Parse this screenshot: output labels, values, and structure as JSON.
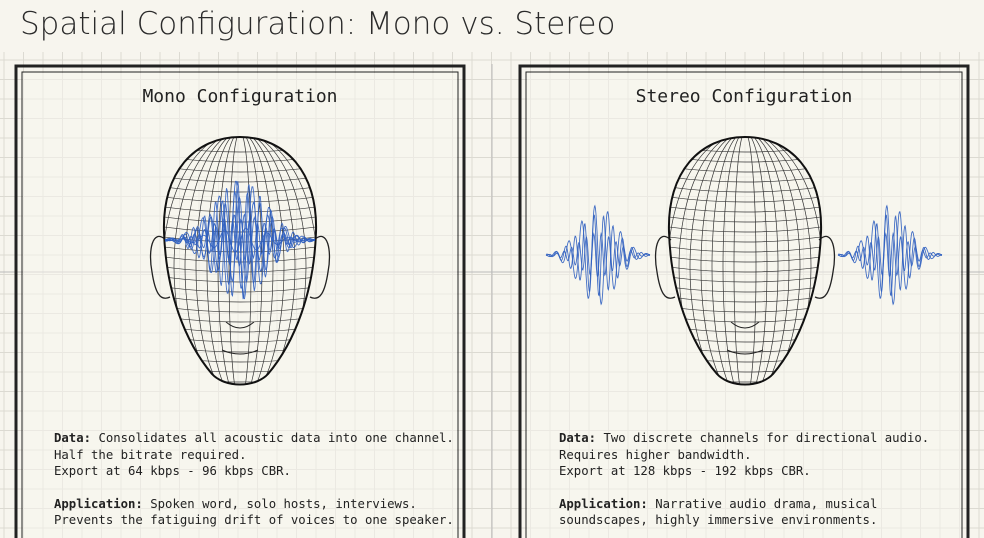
{
  "title": "Spatial Configuration: Mono vs. Stereo",
  "panels": [
    {
      "heading": "Mono Configuration",
      "data_label": "Data:",
      "data_lines": [
        "Consolidates all acoustic data into one channel.",
        "Half the bitrate required.",
        "Export at 64 kbps - 96 kbps CBR."
      ],
      "application_label": "Application:",
      "application_lines": [
        "Spoken word, solo hosts, interviews.",
        "Prevents the fatiguing drift of voices to one speaker."
      ]
    },
    {
      "heading": "Stereo Configuration",
      "data_label": "Data:",
      "data_lines": [
        "Two discrete channels for directional audio.",
        "Requires higher bandwidth.",
        "Export at 128 kbps - 192 kbps CBR."
      ],
      "application_label": "Application:",
      "application_lines": [
        "Narrative audio drama, musical",
        "soundscapes, highly immersive environments."
      ]
    }
  ]
}
